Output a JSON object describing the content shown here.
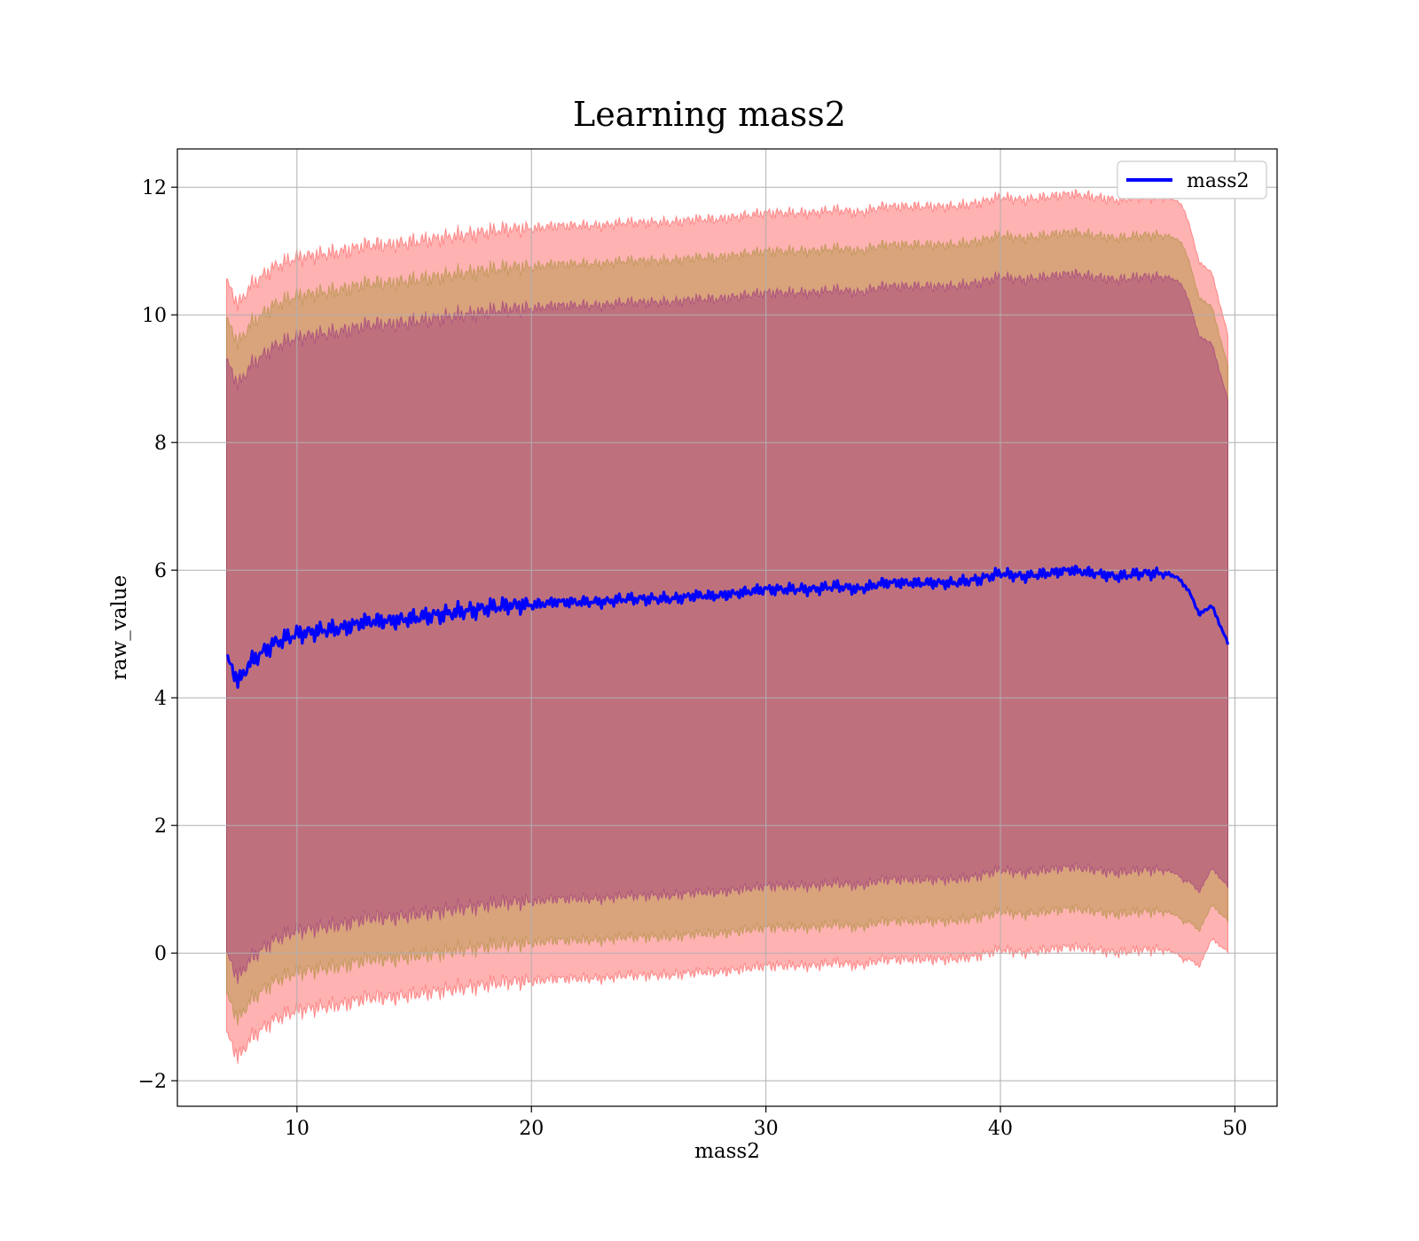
{
  "chart_data": {
    "type": "line",
    "title": "Learning mass2",
    "xlabel": "mass2",
    "ylabel": "raw_value",
    "xlim": [
      4.9,
      51.8
    ],
    "ylim": [
      -2.4,
      12.6
    ],
    "xticks": [
      10,
      20,
      30,
      40,
      50
    ],
    "xtick_labels": [
      "10",
      "20",
      "30",
      "40",
      "50"
    ],
    "yticks": [
      -2,
      0,
      2,
      4,
      6,
      8,
      10,
      12
    ],
    "ytick_labels": [
      "−2",
      "0",
      "2",
      "4",
      "6",
      "8",
      "10",
      "12"
    ],
    "grid": true,
    "legend": {
      "placement": "upper-right",
      "entries": [
        "mass2"
      ]
    },
    "x_range": [
      7.0,
      49.7
    ],
    "series": [
      {
        "name": "mass2",
        "color": "#0000ff",
        "x": [
          7.0,
          7.2,
          7.5,
          8,
          8.5,
          9,
          10,
          11,
          12,
          13,
          14,
          15,
          16,
          17,
          18,
          19,
          20,
          21,
          22,
          23,
          24,
          25,
          26,
          27,
          28,
          29,
          30,
          31,
          32,
          33,
          34,
          35,
          36,
          37,
          38,
          39,
          40,
          41,
          42,
          43,
          44,
          45,
          46,
          47,
          47.5,
          48,
          48.5,
          49,
          49.3,
          49.7
        ],
        "values": [
          4.6,
          4.5,
          4.25,
          4.55,
          4.7,
          4.85,
          5.0,
          5.05,
          5.1,
          5.2,
          5.2,
          5.25,
          5.3,
          5.35,
          5.4,
          5.45,
          5.45,
          5.5,
          5.5,
          5.5,
          5.55,
          5.55,
          5.55,
          5.6,
          5.6,
          5.65,
          5.7,
          5.7,
          5.7,
          5.75,
          5.7,
          5.8,
          5.8,
          5.8,
          5.8,
          5.85,
          5.95,
          5.9,
          5.95,
          6.0,
          5.95,
          5.9,
          5.95,
          5.95,
          5.9,
          5.7,
          5.3,
          5.45,
          5.2,
          4.85
        ]
      }
    ],
    "bands": [
      {
        "sigma": 3,
        "color": "#ff0000",
        "opacity": 0.3,
        "half_width": 5.9
      },
      {
        "sigma": 2,
        "color": "#808000",
        "opacity": 0.3,
        "half_width": 5.3
      },
      {
        "sigma": 1,
        "color": "#800080",
        "opacity": 0.3,
        "half_width": 4.65
      }
    ],
    "band_edge_taper": {
      "x_start": 47.8,
      "x_end": 49.7,
      "factor_at_end": 0.82
    }
  }
}
